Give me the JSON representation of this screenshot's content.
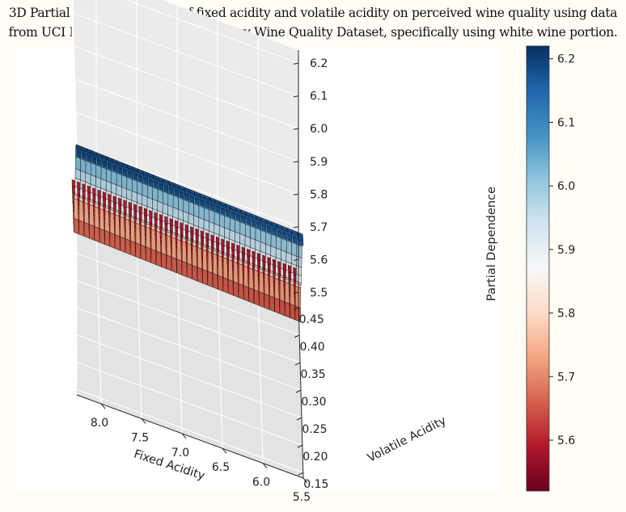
{
  "caption_lines": [
    "3D Partial Dependence Plot of fixed acidity and volatile acidity on perceived wine quality using data",
    "from UCI Machine Learning Repository Wine Quality Dataset, specifically using white wine portion."
  ],
  "chart_data": {
    "type": "surface3d",
    "title": "3D Partial Dependence Plot of fixed acidity and volatile acidity on perceived wine quality using data from UCI Machine Learning Repository Wine Quality Dataset, specifically using white wine portion.",
    "xlabel": "Fixed Acidity",
    "ylabel": "Volatile Acidity",
    "zlabel": "Partial Dependence",
    "colormap": "RdBu",
    "x_ticks": [
      "8.0",
      "7.5",
      "7.0",
      "6.5",
      "6.0",
      "5.5"
    ],
    "y_ticks": [
      "0.45",
      "0.40",
      "0.35",
      "0.30",
      "0.25",
      "0.20",
      "0.15"
    ],
    "z_ticks": [
      "5.5",
      "5.6",
      "5.7",
      "5.8",
      "5.9",
      "6.0",
      "6.1",
      "6.2"
    ],
    "colorbar_ticks": [
      "5.6",
      "5.7",
      "5.8",
      "5.9",
      "6.0",
      "6.1",
      "6.2"
    ],
    "xlim": [
      5.5,
      8.3
    ],
    "ylim": [
      0.14,
      0.46
    ],
    "zlim": [
      5.47,
      6.24
    ],
    "colorbar_range": [
      5.52,
      6.22
    ],
    "surface_profile": {
      "volatile_acidity": [
        0.46,
        0.44,
        0.42,
        0.4,
        0.39,
        0.37,
        0.35,
        0.33,
        0.32,
        0.31,
        0.3,
        0.28,
        0.27,
        0.26,
        0.25,
        0.23,
        0.22,
        0.2,
        0.18,
        0.16,
        0.14
      ],
      "partial_dependence": [
        5.57,
        5.57,
        5.58,
        5.59,
        5.6,
        5.6,
        5.61,
        5.62,
        5.73,
        5.77,
        5.8,
        5.82,
        5.86,
        5.89,
        5.93,
        6.01,
        6.07,
        6.11,
        6.15,
        6.17,
        6.18
      ]
    },
    "surface_x_effect": {
      "fixed_acidity": [
        5.5,
        8.3
      ],
      "delta": [
        0.0,
        0.02
      ]
    }
  }
}
